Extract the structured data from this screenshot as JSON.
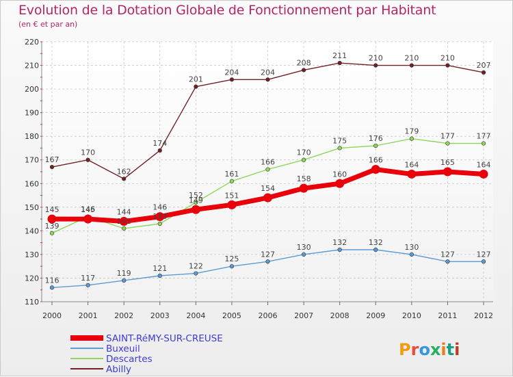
{
  "title": "Evolution de la Dotation Globale de Fonctionnement par Habitant",
  "subtitle": "(en € et par an)",
  "logo": {
    "text": "Proxiti",
    "name": "proxiti-logo"
  },
  "chart_data": {
    "type": "line",
    "x": [
      "2000",
      "2001",
      "2002",
      "2003",
      "2004",
      "2005",
      "2006",
      "2007",
      "2008",
      "2009",
      "2010",
      "2011",
      "2012"
    ],
    "ylim": [
      110,
      220
    ],
    "yticks": [
      110,
      120,
      130,
      140,
      150,
      160,
      170,
      180,
      190,
      200,
      210,
      220
    ],
    "grid": true,
    "legend_position": "bottom-left",
    "series": [
      {
        "name": "Abilly",
        "color": "#722024",
        "width": 1.4,
        "marker": 2.8,
        "values": [
          167,
          170,
          162,
          174,
          201,
          204,
          204,
          208,
          211,
          210,
          210,
          210,
          207
        ]
      },
      {
        "name": "Descartes",
        "color": "#8fd65a",
        "width": 1.4,
        "marker": 2.8,
        "values": [
          139,
          146,
          141,
          143,
          152,
          161,
          166,
          170,
          175,
          176,
          179,
          177,
          177
        ]
      },
      {
        "name": "Buxeuil",
        "color": "#5b9bd5",
        "width": 1.4,
        "marker": 2.8,
        "values": [
          116,
          117,
          119,
          121,
          122,
          125,
          127,
          130,
          132,
          132,
          130,
          127,
          127
        ]
      },
      {
        "name": "SAINT-RéMY-SUR-CREUSE",
        "color": "#e8000b",
        "width": 7,
        "marker": 6.5,
        "values": [
          145,
          145,
          144,
          146,
          149,
          151,
          154,
          158,
          160,
          166,
          164,
          165,
          164
        ]
      }
    ],
    "legend_order": [
      "SAINT-RéMY-SUR-CREUSE",
      "Buxeuil",
      "Descartes",
      "Abilly"
    ]
  }
}
